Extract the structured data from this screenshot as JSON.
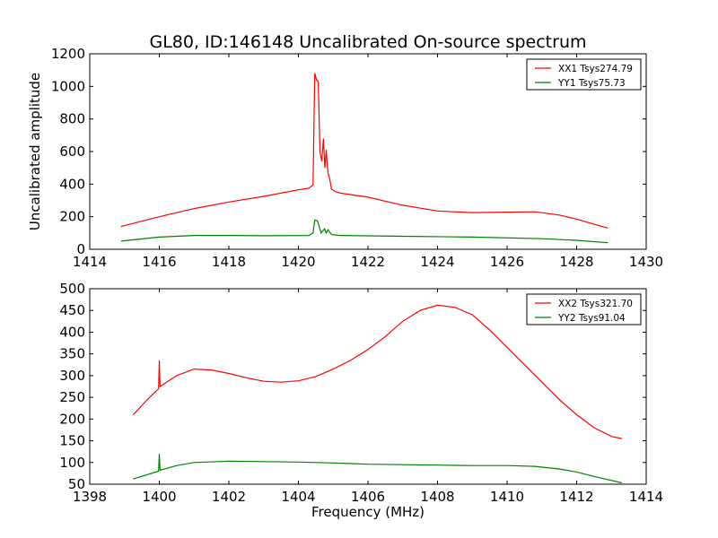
{
  "chart_data": [
    {
      "type": "line",
      "title": "GL80, ID:146148 Uncalibrated On-source spectrum",
      "xlabel": "",
      "ylabel": "Uncalibrated amplitude",
      "xlim": [
        1414,
        1430
      ],
      "ylim": [
        0,
        1200
      ],
      "xticks": [
        1414,
        1416,
        1418,
        1420,
        1422,
        1424,
        1426,
        1428,
        1430
      ],
      "yticks": [
        0,
        200,
        400,
        600,
        800,
        1000,
        1200
      ],
      "legend_position": "top-right",
      "series": [
        {
          "name": "XX1 Tsys274.79",
          "color": "#ff0000",
          "x": [
            1414.9,
            1416,
            1417,
            1418,
            1419,
            1420,
            1420.3,
            1420.42,
            1420.47,
            1420.52,
            1420.57,
            1420.62,
            1420.67,
            1420.72,
            1420.76,
            1420.8,
            1420.85,
            1420.9,
            1420.95,
            1421.05,
            1421.2,
            1422,
            1423,
            1424,
            1425,
            1426,
            1426.8,
            1427.5,
            1428,
            1428.9
          ],
          "y": [
            140,
            200,
            250,
            290,
            325,
            365,
            375,
            395,
            1080,
            1040,
            1030,
            600,
            540,
            680,
            500,
            610,
            470,
            430,
            370,
            355,
            345,
            320,
            270,
            235,
            225,
            228,
            230,
            210,
            185,
            130
          ]
        },
        {
          "name": "YY1 Tsys75.73",
          "color": "#008000",
          "x": [
            1414.9,
            1416,
            1417,
            1418,
            1419,
            1420.3,
            1420.42,
            1420.47,
            1420.55,
            1420.65,
            1420.75,
            1420.8,
            1420.85,
            1420.95,
            1421.2,
            1423,
            1425,
            1427,
            1428,
            1428.9
          ],
          "y": [
            50,
            75,
            85,
            85,
            83,
            85,
            100,
            180,
            175,
            100,
            125,
            100,
            120,
            90,
            85,
            80,
            75,
            65,
            55,
            40
          ]
        }
      ]
    },
    {
      "type": "line",
      "title": "",
      "xlabel": "Frequency (MHz)",
      "ylabel": "",
      "xlim": [
        1398,
        1414
      ],
      "ylim": [
        50,
        500
      ],
      "xticks": [
        1398,
        1400,
        1402,
        1404,
        1406,
        1408,
        1410,
        1412,
        1414
      ],
      "yticks": [
        50,
        100,
        150,
        200,
        250,
        300,
        350,
        400,
        450,
        500
      ],
      "legend_position": "top-right",
      "series": [
        {
          "name": "XX2 Tsys321.70",
          "color": "#ff0000",
          "x": [
            1399.25,
            1399.6,
            1399.98,
            1400,
            1400.02,
            1400.5,
            1401,
            1401.5,
            1402,
            1402.5,
            1403,
            1403.5,
            1404,
            1404.5,
            1405,
            1405.5,
            1406,
            1406.5,
            1407,
            1407.5,
            1408,
            1408.5,
            1409,
            1409.5,
            1410,
            1410.5,
            1411,
            1411.5,
            1412,
            1412.5,
            1413,
            1413.3
          ],
          "y": [
            210,
            240,
            270,
            335,
            275,
            300,
            315,
            313,
            305,
            295,
            287,
            285,
            288,
            298,
            315,
            335,
            360,
            390,
            425,
            450,
            462,
            457,
            440,
            405,
            365,
            325,
            285,
            245,
            210,
            180,
            160,
            155
          ]
        },
        {
          "name": "YY2 Tsys91.04",
          "color": "#008000",
          "x": [
            1399.25,
            1399.98,
            1400,
            1400.02,
            1400.5,
            1401,
            1402,
            1403,
            1404,
            1405,
            1406,
            1407,
            1408,
            1409,
            1410,
            1410.8,
            1411.5,
            1412,
            1412.5,
            1413.3
          ],
          "y": [
            62,
            80,
            120,
            82,
            93,
            100,
            103,
            102,
            101,
            99,
            96,
            95,
            94,
            93,
            93,
            91,
            85,
            78,
            68,
            53
          ]
        }
      ]
    }
  ]
}
